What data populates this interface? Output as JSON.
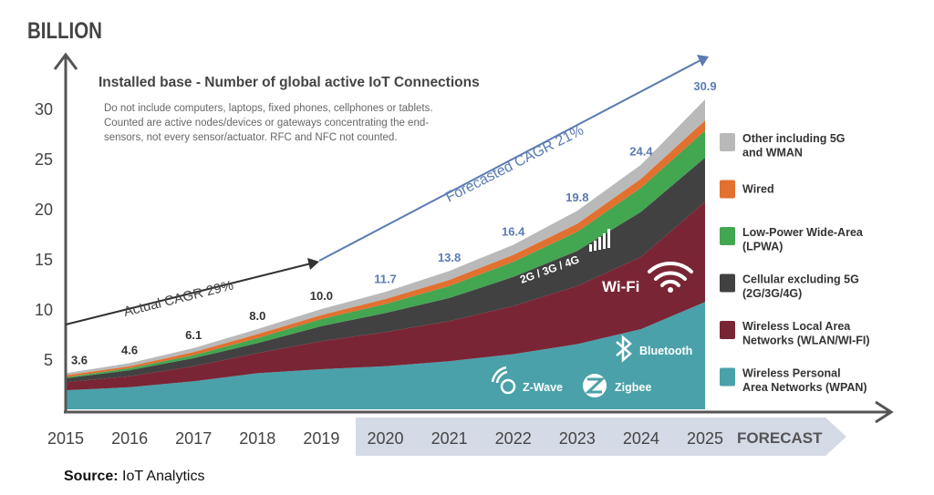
{
  "chart_data": {
    "type": "area",
    "stacked": true,
    "ylabel": "BILLION",
    "title": "Installed base - Number of global active IoT Connections",
    "subtitle": [
      "Do not include computers, laptops, fixed phones, cellphones or tablets.",
      "Counted are active nodes/devices or gateways concentrating the end-",
      "sensors, not every sensor/actuator. RFC and NFC not counted."
    ],
    "x": [
      "2015",
      "2016",
      "2017",
      "2018",
      "2019",
      "2020",
      "2021",
      "2022",
      "2023",
      "2024",
      "2025"
    ],
    "yticks": [
      5,
      10,
      15,
      20,
      25,
      30
    ],
    "ylim": [
      0,
      33
    ],
    "forecast_label": "FORECAST",
    "forecast_from": "2020",
    "totals": [
      "3.6",
      "4.6",
      "6.1",
      "8.0",
      "10.0",
      "11.7",
      "13.8",
      "16.4",
      "19.8",
      "24.4",
      "30.9"
    ],
    "series": [
      {
        "name": "Wireless Personal Area Networks (WPAN)",
        "legend": [
          "Wireless Personal",
          "Area Networks (WPAN)"
        ],
        "color": "#4aa1aa",
        "values": [
          1.9,
          2.2,
          2.8,
          3.6,
          4.0,
          4.3,
          4.8,
          5.5,
          6.5,
          8.0,
          10.7
        ]
      },
      {
        "name": "Wireless Local Area Networks (WLAN/WI-FI)",
        "legend": [
          "Wireless Local Area",
          "Networks (WLAN/WI-FI)"
        ],
        "color": "#7a2535",
        "values": [
          0.8,
          1.1,
          1.5,
          2.0,
          2.8,
          3.4,
          4.0,
          4.8,
          5.8,
          7.2,
          10.0
        ]
      },
      {
        "name": "Cellular excluding 5G (2G/3G/4G)",
        "legend": [
          "Cellular excluding 5G",
          "(2G/3G/4G)"
        ],
        "color": "#414141",
        "values": [
          0.4,
          0.6,
          0.8,
          1.0,
          1.5,
          1.9,
          2.3,
          2.9,
          3.5,
          4.5,
          4.4
        ]
      },
      {
        "name": "Low-Power Wide-Area (LPWA)",
        "legend": [
          "Low-Power Wide-Area",
          "(LPWA)"
        ],
        "color": "#43a651",
        "values": [
          0.1,
          0.2,
          0.3,
          0.5,
          0.7,
          0.9,
          1.2,
          1.5,
          1.9,
          2.4,
          2.7
        ]
      },
      {
        "name": "Wired",
        "legend": [
          "Wired"
        ],
        "color": "#e2702f",
        "values": [
          0.2,
          0.2,
          0.3,
          0.4,
          0.4,
          0.5,
          0.6,
          0.7,
          0.8,
          0.9,
          1.0
        ]
      },
      {
        "name": "Other including 5G and WMAN",
        "legend": [
          "Other including 5G",
          "and WMAN"
        ],
        "color": "#b9b9b9",
        "values": [
          0.2,
          0.3,
          0.4,
          0.5,
          0.6,
          0.7,
          0.9,
          1.0,
          1.3,
          1.4,
          2.1
        ]
      }
    ],
    "annotations": {
      "actual_cagr": "Actual CAGR 29%",
      "forecast_cagr": "Forecasted CAGR 21%",
      "cellular": "2G / 3G / 4G",
      "wifi": "Wi-Fi",
      "bluetooth": "Bluetooth",
      "zwave": "Z-Wave",
      "zigbee": "Zigbee"
    },
    "label_color": "#5b7bb3"
  },
  "source": {
    "label": "Source:",
    "value": " IoT Analytics"
  }
}
